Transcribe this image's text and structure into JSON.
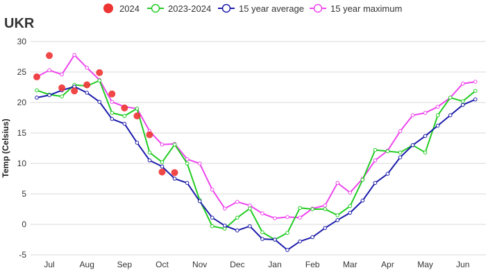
{
  "chart_data": {
    "type": "line",
    "title": "UKR",
    "ylabel": "Temp (Celsius)",
    "xlabel": "",
    "ylim": [
      -5,
      30
    ],
    "yticks": [
      -5,
      0,
      5,
      10,
      15,
      20,
      25,
      30
    ],
    "x_tick_labels": [
      "Jul",
      "Aug",
      "Sep",
      "Oct",
      "Nov",
      "Dec",
      "Jan",
      "Feb",
      "Mar",
      "Apr",
      "May",
      "Jun"
    ],
    "grid": "horizontal",
    "legend_position": "top",
    "series": [
      {
        "name": "2024",
        "style": "dots",
        "color": "#ee3333",
        "values": [
          24.2,
          27.7,
          22.4,
          21.9,
          22.9,
          24.9,
          21.4,
          19.1,
          17.8,
          14.7,
          8.6,
          8.5
        ]
      },
      {
        "name": "2023-2024",
        "style": "line",
        "color": "#22cc22",
        "values": [
          22.0,
          21.3,
          21.0,
          22.9,
          22.7,
          23.6,
          18.3,
          17.8,
          19.0,
          11.8,
          10.2,
          13.1,
          10.0,
          4.0,
          -0.3,
          -0.7,
          1.1,
          2.6,
          -1.3,
          -2.5,
          -1.4,
          2.7,
          2.5,
          2.5,
          1.5,
          3.0,
          7.3,
          12.2,
          12.0,
          11.8,
          13.0,
          11.8,
          17.9,
          20.8,
          20.2,
          21.9
        ]
      },
      {
        "name": "15 year average",
        "style": "line",
        "color": "#1a1aaa",
        "values": [
          20.8,
          21.2,
          22.0,
          22.6,
          21.6,
          20.1,
          17.3,
          16.5,
          13.4,
          10.5,
          9.5,
          7.5,
          6.8,
          3.8,
          1.1,
          -0.2,
          -1.0,
          -0.3,
          -2.4,
          -2.5,
          -4.2,
          -2.8,
          -2.1,
          -0.6,
          0.7,
          1.9,
          3.9,
          6.8,
          8.3,
          11.0,
          13.0,
          14.5,
          16.2,
          17.9,
          19.6,
          20.5
        ]
      },
      {
        "name": "15 year maximum",
        "style": "line",
        "color": "#ee44ee",
        "values": [
          24.2,
          25.3,
          24.6,
          27.8,
          25.7,
          23.7,
          20.1,
          19.3,
          19.0,
          15.3,
          13.1,
          13.2,
          10.7,
          10.0,
          5.7,
          2.6,
          3.7,
          3.1,
          1.8,
          1.0,
          1.2,
          1.1,
          2.6,
          3.1,
          6.8,
          5.2,
          7.5,
          10.5,
          12.1,
          15.3,
          17.9,
          18.3,
          19.3,
          20.8,
          23.1,
          23.4
        ]
      }
    ]
  }
}
